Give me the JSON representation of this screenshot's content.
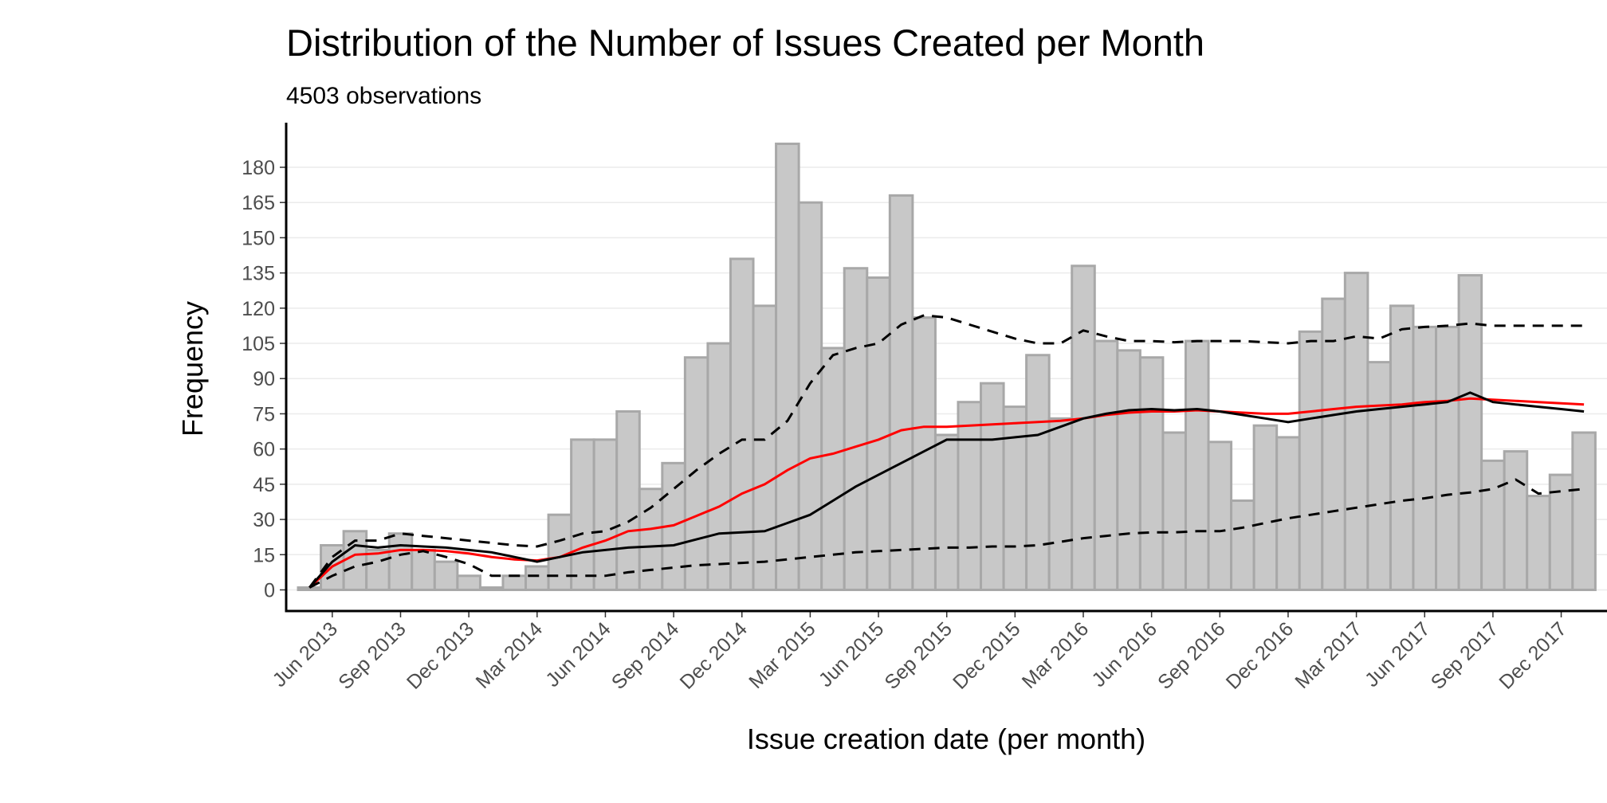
{
  "chart_data": {
    "type": "bar",
    "title": "Distribution of the Number of Issues Created per Month",
    "subtitle": "4503 observations",
    "x_label": "Issue creation date (per month)",
    "y_label": "Frequency",
    "categories": [
      null,
      "Jun 2013",
      null,
      null,
      "Sep 2013",
      null,
      null,
      "Dec 2013",
      null,
      null,
      "Mar 2014",
      null,
      null,
      "Jun 2014",
      null,
      null,
      "Sep 2014",
      null,
      null,
      "Dec 2014",
      null,
      null,
      "Mar 2015",
      null,
      null,
      "Jun 2015",
      null,
      null,
      "Sep 2015",
      null,
      null,
      "Dec 2015",
      null,
      null,
      "Mar 2016",
      null,
      null,
      "Jun 2016",
      null,
      null,
      "Sep 2016",
      null,
      null,
      "Dec 2016",
      null,
      null,
      "Mar 2017",
      null,
      null,
      "Jun 2017",
      null,
      null,
      "Sep 2017",
      null,
      null,
      "Dec 2017",
      null
    ],
    "series": [
      {
        "type": "bar",
        "color": "#c8c8c8",
        "values": [
          1,
          19,
          25,
          17,
          24,
          17,
          12,
          6,
          1,
          6,
          10,
          32,
          64,
          64,
          76,
          43,
          54,
          99,
          105,
          141,
          121,
          190,
          165,
          103,
          137,
          133,
          168,
          116,
          66,
          80,
          88,
          78,
          100,
          73,
          138,
          106,
          102,
          99,
          67,
          106,
          63,
          38,
          70,
          65,
          110,
          124,
          135,
          97,
          121,
          112,
          112,
          134,
          55,
          59,
          40,
          49,
          67
        ]
      },
      {
        "type": "line",
        "color": "#ff0000",
        "dash": false,
        "values": [
          1,
          10,
          15,
          15.5,
          17,
          17,
          16.5,
          15.5,
          14,
          13,
          12.5,
          14,
          18,
          21,
          25,
          26,
          27.5,
          31.5,
          35.5,
          41,
          45,
          51,
          56,
          58,
          61,
          64,
          68,
          69.5,
          69.5,
          70,
          70.5,
          71,
          71.5,
          72,
          73,
          74.5,
          75.5,
          76,
          76,
          76.5,
          76,
          75.5,
          75,
          75,
          76,
          77,
          78,
          78.5,
          79,
          80,
          80.5,
          81.5,
          81,
          80.5,
          80,
          79.5,
          79
        ]
      },
      {
        "type": "line",
        "color": "#000000",
        "dash": false,
        "values": [
          1,
          12,
          19,
          18,
          19,
          18.5,
          18,
          17,
          16,
          14,
          12,
          14,
          16,
          17,
          18,
          18.5,
          19,
          21.5,
          24,
          24.5,
          25,
          28.5,
          32,
          38,
          44,
          49,
          54,
          59,
          64,
          64,
          64,
          65,
          66,
          69.5,
          73,
          75,
          76.5,
          77,
          76.5,
          77,
          76,
          74.5,
          73,
          71.5,
          73,
          74.5,
          76,
          77,
          78,
          79,
          80,
          84,
          80,
          79,
          78,
          77,
          76
        ]
      },
      {
        "type": "line",
        "color": "#000000",
        "dash": true,
        "values": [
          1,
          14,
          21,
          21,
          24,
          23,
          22,
          21,
          20,
          19,
          18.5,
          21,
          24,
          25,
          29,
          35,
          43,
          51,
          58,
          64,
          64,
          72,
          88,
          100,
          103,
          105,
          113,
          117,
          116,
          113,
          110,
          107,
          105,
          105,
          110.5,
          108,
          106,
          106,
          105.5,
          106,
          106,
          106,
          105.5,
          105,
          106,
          106,
          108,
          107,
          111,
          112,
          112.5,
          113.5,
          112.5,
          112.5,
          112.5,
          112.5,
          112.5
        ]
      },
      {
        "type": "line",
        "color": "#000000",
        "dash": true,
        "values": [
          1,
          6,
          10,
          12,
          15,
          16.5,
          14,
          11,
          6,
          6,
          6,
          6,
          6,
          6,
          7.5,
          8.5,
          9.5,
          10.5,
          11,
          11.5,
          12,
          13,
          14,
          15,
          16,
          16.5,
          17,
          17.5,
          18,
          18,
          18.5,
          18.5,
          19,
          20.5,
          22,
          23,
          24,
          24.5,
          24.5,
          25,
          25,
          26.5,
          28.5,
          30.5,
          32,
          33.5,
          35,
          36.5,
          38,
          39,
          40.5,
          41.5,
          43,
          47,
          41,
          42,
          43
        ]
      }
    ],
    "ylim": [
      -9,
      199
    ],
    "yticks": [
      0,
      15,
      30,
      45,
      60,
      75,
      90,
      105,
      120,
      135,
      150,
      165,
      180
    ],
    "grid": true
  }
}
